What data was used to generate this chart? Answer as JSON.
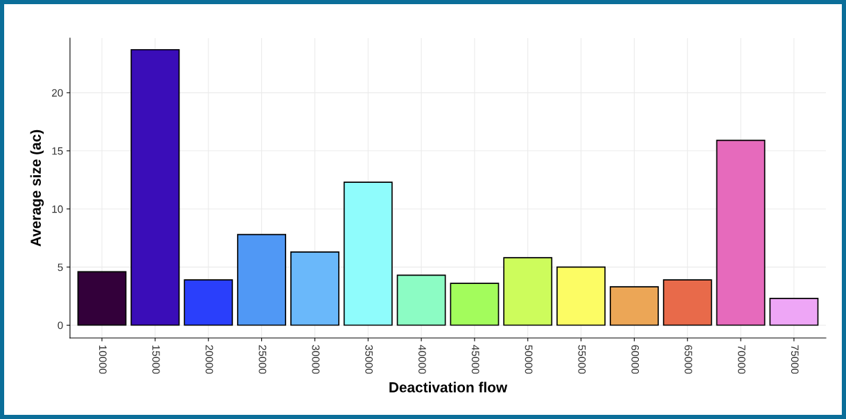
{
  "chart_data": {
    "type": "bar",
    "xlabel": "Deactivation flow",
    "ylabel": "Average size (ac)",
    "categories": [
      "10000",
      "15000",
      "20000",
      "25000",
      "30000",
      "35000",
      "40000",
      "45000",
      "50000",
      "55000",
      "60000",
      "65000",
      "70000",
      "75000"
    ],
    "values": [
      4.6,
      23.7,
      3.9,
      7.8,
      6.3,
      12.3,
      4.3,
      3.6,
      5.8,
      5.0,
      3.3,
      3.9,
      15.9,
      2.3
    ],
    "colors": [
      "#33003a",
      "#3a0db8",
      "#2a3ffb",
      "#5098f5",
      "#6ab8fa",
      "#8ffcfc",
      "#8cfcc4",
      "#a3fc5c",
      "#cdfc5c",
      "#fcfc64",
      "#eca656",
      "#e86a4a",
      "#e66abc",
      "#eea6f6"
    ],
    "ylim": [
      -1.1,
      24.7
    ],
    "yticks": [
      0,
      5,
      10,
      15,
      20
    ],
    "grid": true
  }
}
